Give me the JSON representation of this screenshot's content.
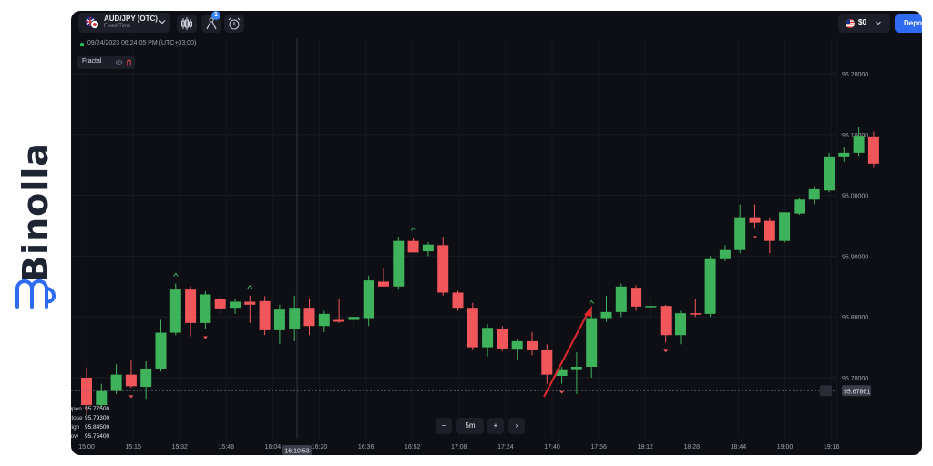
{
  "brand": {
    "name": "Binolla",
    "logo": "binolla-logo-icon",
    "color": "#2f6bf0"
  },
  "topbar": {
    "asset": {
      "name": "AUD/JPY (OTC)",
      "mode": "Fixed Time",
      "flag": "au-jp-flag-icon"
    },
    "buttons": [
      {
        "icon": "candlestick-type-icon"
      },
      {
        "icon": "indicators-icon",
        "badge": "1"
      },
      {
        "icon": "alarm-clock-icon"
      }
    ],
    "balance": "$0",
    "deposit_label": "Depo"
  },
  "datetime": "09/24/2023 06:24:05 PM (UTC+03:00)",
  "indicator": {
    "name": "Fractal"
  },
  "ohlc": [
    {
      "key": "Open",
      "value": "95.77500"
    },
    {
      "key": "Close",
      "value": "95.79300"
    },
    {
      "key": "High",
      "value": "95.84500"
    },
    {
      "key": "Low",
      "value": "95.75400"
    }
  ],
  "timeframe": {
    "minus": "−",
    "value": "5m",
    "plus": "+",
    "next": "›"
  },
  "crosshair_time": "16:10:53",
  "chart_data": {
    "type": "candlestick",
    "colors": {
      "up": "#3fb35c",
      "down": "#f0565a",
      "background": "#0d0f14"
    },
    "y_ticks": [
      "96.20000",
      "96.10000",
      "96.00000",
      "95.90000",
      "95.80000",
      "95.70000"
    ],
    "x_ticks": [
      "15:00",
      "15:16",
      "15:32",
      "15:48",
      "16:04",
      "16:20",
      "16:36",
      "16:52",
      "17:08",
      "17:24",
      "17:40",
      "17:56",
      "18:12",
      "18:28",
      "18:44",
      "19:00",
      "19:16"
    ],
    "ylim": [
      95.61,
      96.26
    ],
    "current_price": "95.67861",
    "candles": [
      {
        "o": 95.7,
        "h": 95.717,
        "l": 95.64,
        "c": 95.655
      },
      {
        "o": 95.655,
        "h": 95.69,
        "l": 95.65,
        "c": 95.678
      },
      {
        "o": 95.678,
        "h": 95.722,
        "l": 95.673,
        "c": 95.705
      },
      {
        "o": 95.705,
        "h": 95.73,
        "l": 95.683,
        "c": 95.686
      },
      {
        "o": 95.685,
        "h": 95.727,
        "l": 95.665,
        "c": 95.715
      },
      {
        "o": 95.715,
        "h": 95.795,
        "l": 95.71,
        "c": 95.774
      },
      {
        "o": 95.774,
        "h": 95.855,
        "l": 95.77,
        "c": 95.845
      },
      {
        "o": 95.845,
        "h": 95.85,
        "l": 95.768,
        "c": 95.79
      },
      {
        "o": 95.79,
        "h": 95.842,
        "l": 95.78,
        "c": 95.837
      },
      {
        "o": 95.83,
        "h": 95.833,
        "l": 95.805,
        "c": 95.814
      },
      {
        "o": 95.815,
        "h": 95.83,
        "l": 95.805,
        "c": 95.825
      },
      {
        "o": 95.825,
        "h": 95.835,
        "l": 95.79,
        "c": 95.82
      },
      {
        "o": 95.826,
        "h": 95.834,
        "l": 95.77,
        "c": 95.778
      },
      {
        "o": 95.778,
        "h": 95.82,
        "l": 95.755,
        "c": 95.812
      },
      {
        "o": 95.78,
        "h": 95.835,
        "l": 95.76,
        "c": 95.815
      },
      {
        "o": 95.815,
        "h": 95.83,
        "l": 95.77,
        "c": 95.785
      },
      {
        "o": 95.785,
        "h": 95.81,
        "l": 95.775,
        "c": 95.805
      },
      {
        "o": 95.795,
        "h": 95.83,
        "l": 95.79,
        "c": 95.792
      },
      {
        "o": 95.795,
        "h": 95.805,
        "l": 95.78,
        "c": 95.8
      },
      {
        "o": 95.798,
        "h": 95.868,
        "l": 95.785,
        "c": 95.86
      },
      {
        "o": 95.858,
        "h": 95.88,
        "l": 95.85,
        "c": 95.85
      },
      {
        "o": 95.85,
        "h": 95.932,
        "l": 95.845,
        "c": 95.925
      },
      {
        "o": 95.925,
        "h": 95.93,
        "l": 95.91,
        "c": 95.906
      },
      {
        "o": 95.908,
        "h": 95.923,
        "l": 95.9,
        "c": 95.919
      },
      {
        "o": 95.918,
        "h": 95.932,
        "l": 95.835,
        "c": 95.84
      },
      {
        "o": 95.84,
        "h": 95.843,
        "l": 95.81,
        "c": 95.815
      },
      {
        "o": 95.815,
        "h": 95.823,
        "l": 95.745,
        "c": 95.75
      },
      {
        "o": 95.75,
        "h": 95.788,
        "l": 95.735,
        "c": 95.782
      },
      {
        "o": 95.78,
        "h": 95.785,
        "l": 95.744,
        "c": 95.748
      },
      {
        "o": 95.746,
        "h": 95.764,
        "l": 95.73,
        "c": 95.76
      },
      {
        "o": 95.76,
        "h": 95.775,
        "l": 95.737,
        "c": 95.745
      },
      {
        "o": 95.745,
        "h": 95.755,
        "l": 95.69,
        "c": 95.705
      },
      {
        "o": 95.703,
        "h": 95.718,
        "l": 95.69,
        "c": 95.714
      },
      {
        "o": 95.714,
        "h": 95.742,
        "l": 95.673,
        "c": 95.718
      },
      {
        "o": 95.718,
        "h": 95.81,
        "l": 95.7,
        "c": 95.798
      },
      {
        "o": 95.798,
        "h": 95.835,
        "l": 95.792,
        "c": 95.808
      },
      {
        "o": 95.808,
        "h": 95.855,
        "l": 95.8,
        "c": 95.85
      },
      {
        "o": 95.848,
        "h": 95.852,
        "l": 95.81,
        "c": 95.817
      },
      {
        "o": 95.817,
        "h": 95.83,
        "l": 95.8,
        "c": 95.818
      },
      {
        "o": 95.818,
        "h": 95.82,
        "l": 95.758,
        "c": 95.77
      },
      {
        "o": 95.77,
        "h": 95.81,
        "l": 95.755,
        "c": 95.806
      },
      {
        "o": 95.806,
        "h": 95.83,
        "l": 95.8,
        "c": 95.805
      },
      {
        "o": 95.805,
        "h": 95.9,
        "l": 95.8,
        "c": 95.895
      },
      {
        "o": 95.895,
        "h": 95.918,
        "l": 95.892,
        "c": 95.91
      },
      {
        "o": 95.91,
        "h": 95.985,
        "l": 95.905,
        "c": 95.964
      },
      {
        "o": 95.964,
        "h": 95.985,
        "l": 95.945,
        "c": 95.955
      },
      {
        "o": 95.958,
        "h": 95.963,
        "l": 95.905,
        "c": 95.925
      },
      {
        "o": 95.925,
        "h": 95.97,
        "l": 95.922,
        "c": 95.972
      },
      {
        "o": 95.97,
        "h": 95.995,
        "l": 95.968,
        "c": 95.993
      },
      {
        "o": 95.993,
        "h": 96.015,
        "l": 95.985,
        "c": 96.01
      },
      {
        "o": 96.008,
        "h": 96.07,
        "l": 96.005,
        "c": 96.064
      },
      {
        "o": 96.064,
        "h": 96.08,
        "l": 96.055,
        "c": 96.07
      },
      {
        "o": 96.07,
        "h": 96.113,
        "l": 96.065,
        "c": 96.098
      },
      {
        "o": 96.097,
        "h": 96.105,
        "l": 96.045,
        "c": 96.052
      }
    ],
    "fractals_up": [
      6,
      11,
      22,
      34
    ],
    "fractals_down": [
      3,
      8,
      32,
      39,
      45
    ]
  }
}
